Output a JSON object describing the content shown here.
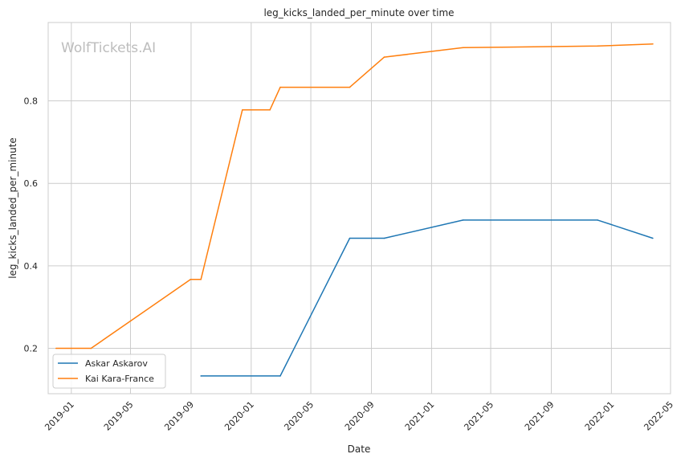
{
  "chart_data": {
    "type": "line",
    "title": "leg_kicks_landed_per_minute over time",
    "xlabel": "Date",
    "ylabel": "leg_kicks_landed_per_minute",
    "watermark": "WolfTickets.AI",
    "x_ticks": [
      "2019-01",
      "2019-05",
      "2019-09",
      "2020-01",
      "2020-05",
      "2020-09",
      "2021-01",
      "2021-05",
      "2021-09",
      "2022-01",
      "2022-05"
    ],
    "y_ticks": [
      "0.2",
      "0.4",
      "0.6",
      "0.8"
    ],
    "xlim": [
      "2018-11-15",
      "2022-05-01"
    ],
    "ylim": [
      0.09,
      0.99
    ],
    "grid": true,
    "legend_position": "lower-left",
    "series": [
      {
        "name": "Askar Askarov",
        "color": "#1f77b4",
        "points": [
          [
            "2019-09-21",
            0.133
          ],
          [
            "2020-02-29",
            0.133
          ],
          [
            "2020-07-19",
            0.467
          ],
          [
            "2020-09-27",
            0.467
          ],
          [
            "2021-03-06",
            0.511
          ],
          [
            "2021-12-04",
            0.511
          ],
          [
            "2022-03-26",
            0.467
          ]
        ]
      },
      {
        "name": "Kai Kara-France",
        "color": "#ff7f0e",
        "points": [
          [
            "2018-12-01",
            0.2
          ],
          [
            "2019-02-10",
            0.2
          ],
          [
            "2019-08-31",
            0.367
          ],
          [
            "2019-09-21",
            0.367
          ],
          [
            "2019-12-14",
            0.778
          ],
          [
            "2020-02-08",
            0.778
          ],
          [
            "2020-02-29",
            0.833
          ],
          [
            "2020-07-19",
            0.833
          ],
          [
            "2020-09-27",
            0.906
          ],
          [
            "2021-03-06",
            0.929
          ],
          [
            "2021-12-04",
            0.933
          ],
          [
            "2022-03-26",
            0.938
          ]
        ]
      }
    ]
  }
}
